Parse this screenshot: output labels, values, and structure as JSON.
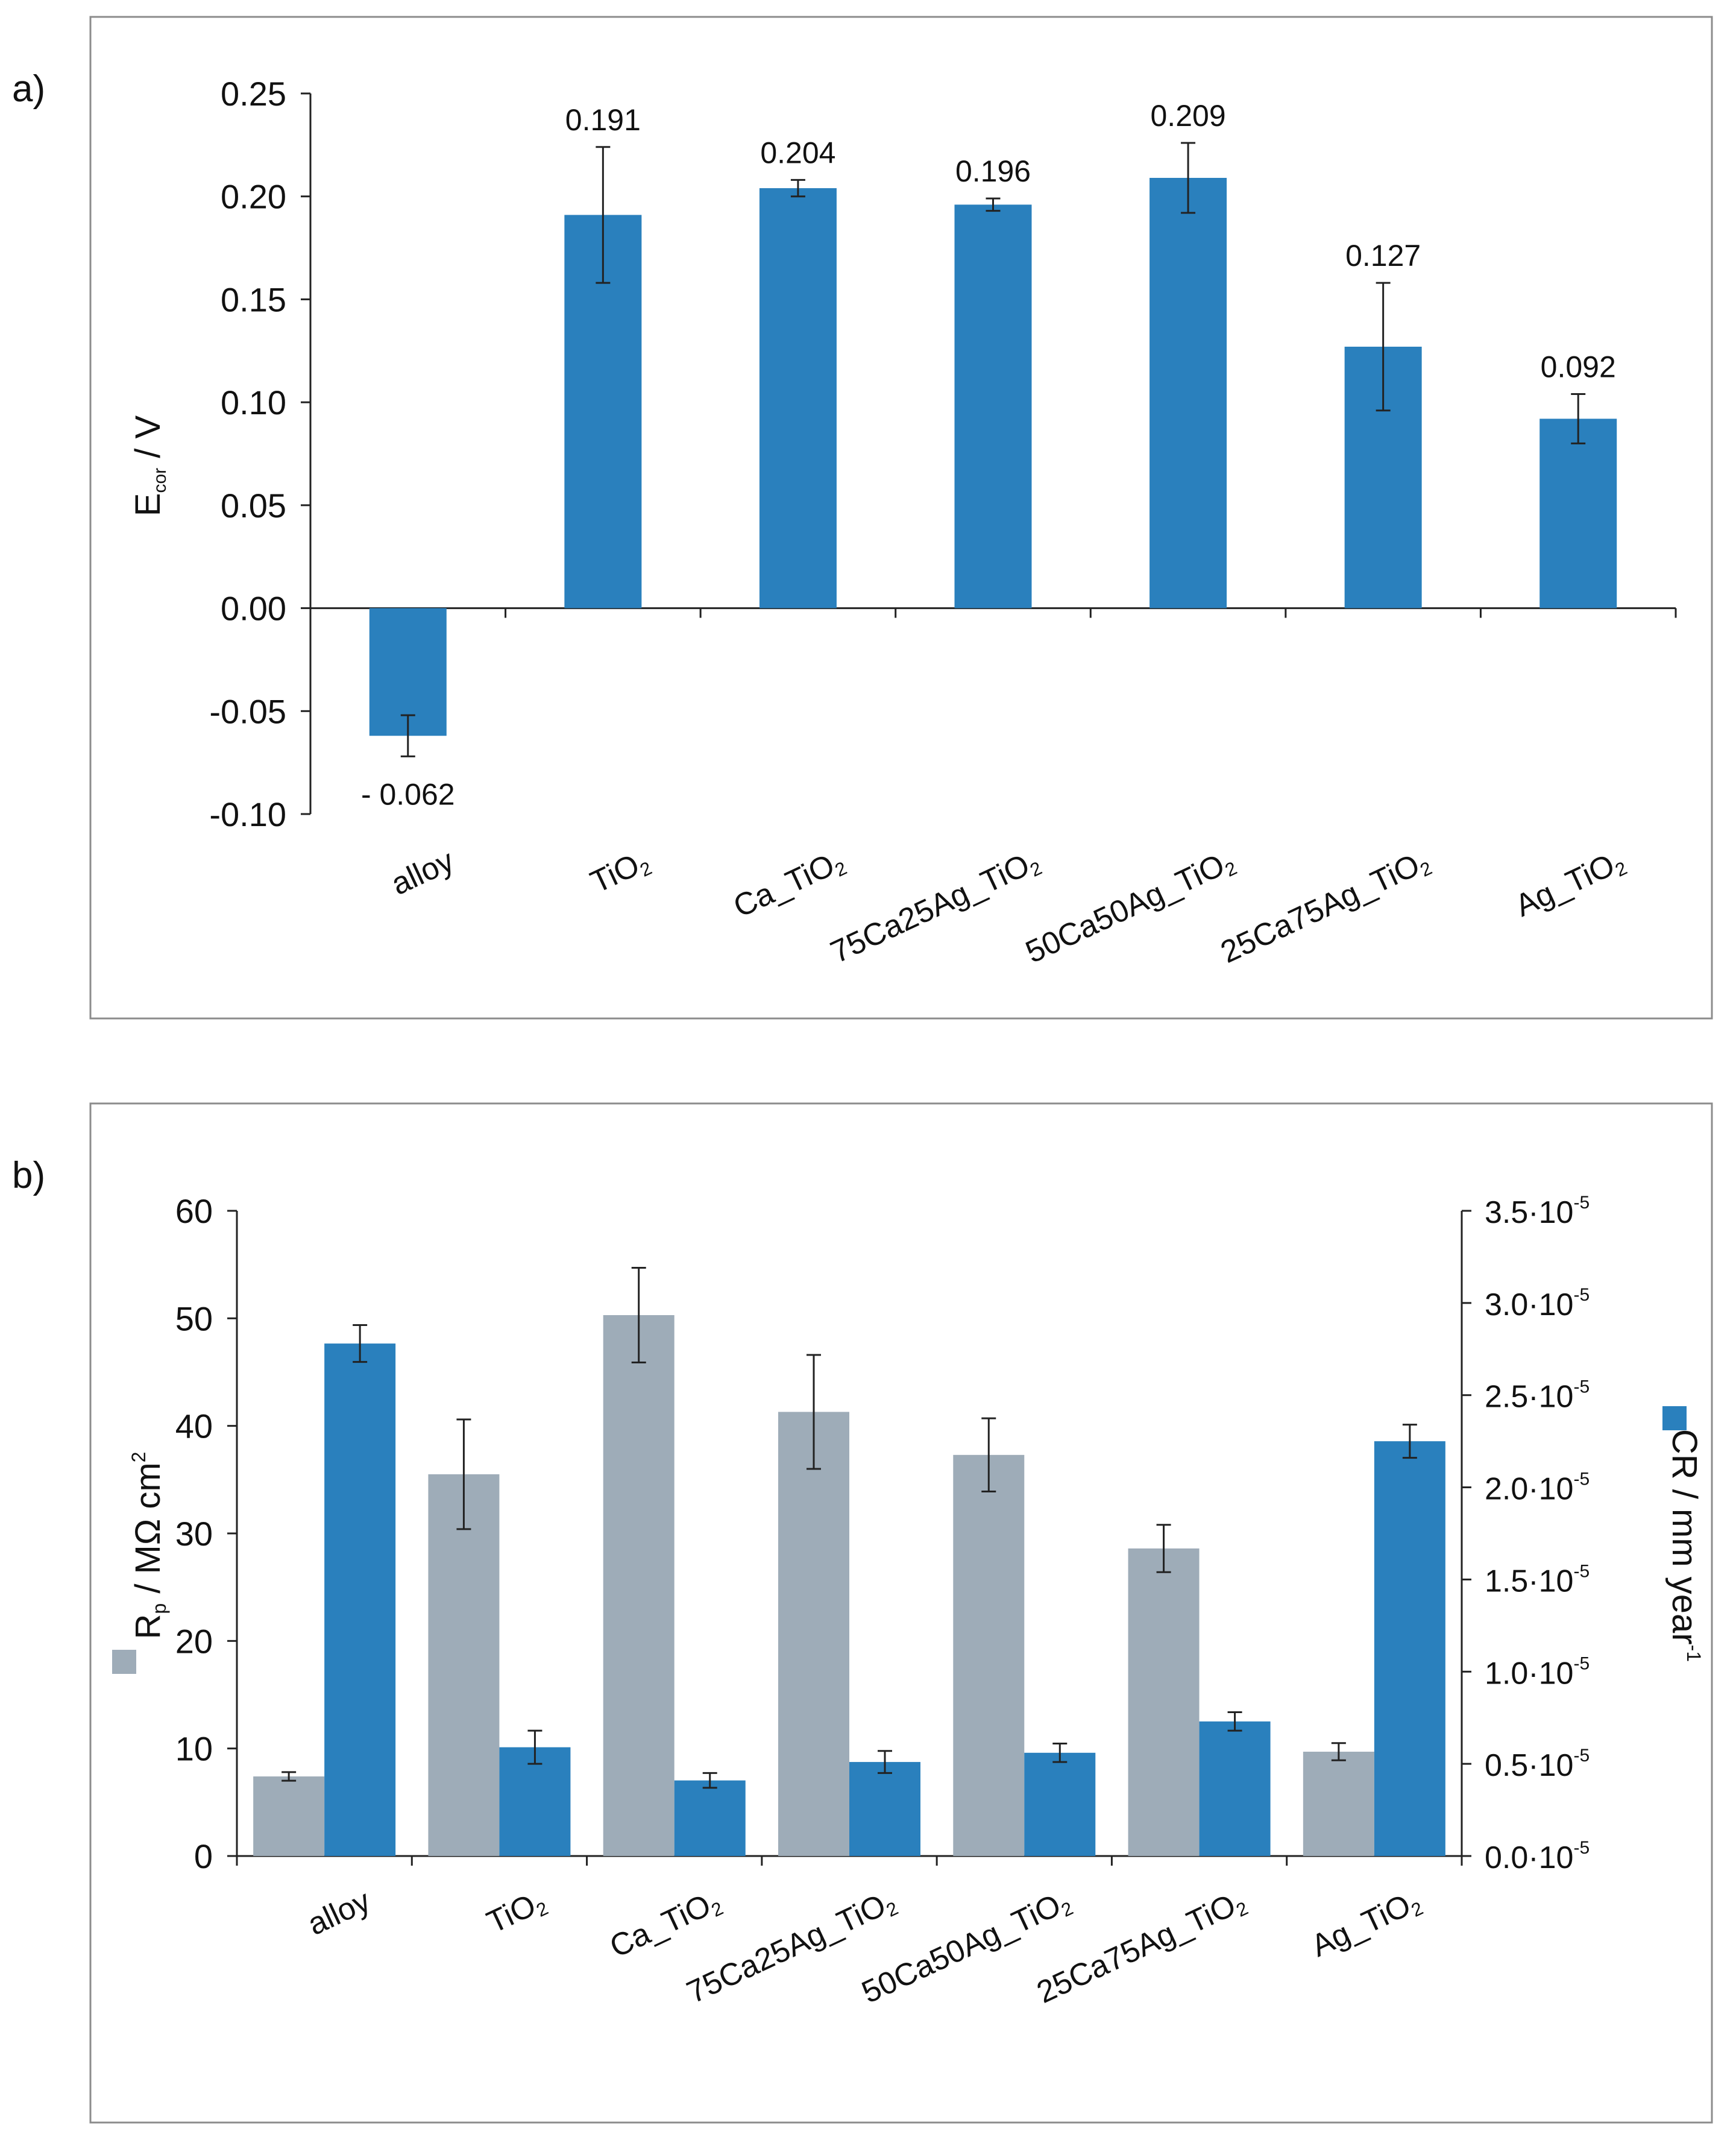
{
  "chart_data": [
    {
      "panel_label": "a)",
      "type": "bar",
      "ylabel": {
        "main": "E",
        "sub": "cor",
        "unit": " / V"
      },
      "ylim": [
        -0.1,
        0.25
      ],
      "yticks": [
        -0.1,
        -0.05,
        0.0,
        0.05,
        0.1,
        0.15,
        0.2,
        0.25
      ],
      "ytick_labels": [
        "-0.10",
        "-0.05",
        "0.00",
        "0.05",
        "0.10",
        "0.15",
        "0.20",
        "0.25"
      ],
      "categories": [
        {
          "base": "alloy",
          "sub": ""
        },
        {
          "base": "TiO",
          "sub": "2"
        },
        {
          "base": "Ca_TiO",
          "sub": "2"
        },
        {
          "base": "75Ca25Ag_TiO",
          "sub": "2"
        },
        {
          "base": "50Ca50Ag_TiO",
          "sub": "2"
        },
        {
          "base": "25Ca75Ag_TiO",
          "sub": "2"
        },
        {
          "base": "Ag_TiO",
          "sub": "2"
        }
      ],
      "values": [
        -0.062,
        0.191,
        0.204,
        0.196,
        0.209,
        0.127,
        0.092
      ],
      "value_labels": [
        "- 0.062",
        "0.191",
        "0.204",
        "0.196",
        "0.209",
        "0.127",
        "0.092"
      ],
      "errors": [
        0.01,
        0.033,
        0.004,
        0.003,
        0.017,
        0.031,
        0.012
      ],
      "color": "#2a80bd"
    },
    {
      "panel_label": "b)",
      "type": "bar",
      "categories": [
        {
          "base": "alloy",
          "sub": ""
        },
        {
          "base": "TiO",
          "sub": "2"
        },
        {
          "base": "Ca_TiO",
          "sub": "2"
        },
        {
          "base": "75Ca25Ag_TiO",
          "sub": "2"
        },
        {
          "base": "50Ca50Ag_TiO",
          "sub": "2"
        },
        {
          "base": "25Ca75Ag_TiO",
          "sub": "2"
        },
        {
          "base": "Ag_TiO",
          "sub": "2"
        }
      ],
      "left_axis": {
        "label": {
          "main": "R",
          "sub": "p",
          "unit": " / MΩ cm",
          "sup": "2"
        },
        "ylim": [
          0,
          60
        ],
        "yticks": [
          0,
          10,
          20,
          30,
          40,
          50,
          60
        ],
        "ytick_labels": [
          "0",
          "10",
          "20",
          "30",
          "40",
          "50",
          "60"
        ]
      },
      "right_axis": {
        "label": {
          "main": "CR / mm year",
          "sup": "-1"
        },
        "ylim": [
          0.0,
          3.5
        ],
        "multiplier_text": "·10",
        "multiplier_exp": "-5",
        "yticks": [
          0.0,
          0.5,
          1.0,
          1.5,
          2.0,
          2.5,
          3.0,
          3.5
        ],
        "ytick_labels": [
          "0.0",
          "0.5",
          "1.0",
          "1.5",
          "2.0",
          "2.5",
          "3.0",
          "3.5"
        ]
      },
      "series": [
        {
          "name": "Rp",
          "axis": "left",
          "color": "#9eacb8",
          "values": [
            7.4,
            35.5,
            50.3,
            41.3,
            37.3,
            28.6,
            9.7
          ],
          "errors": [
            0.4,
            5.1,
            4.4,
            5.3,
            3.4,
            2.2,
            0.8
          ]
        },
        {
          "name": "CR",
          "axis": "right",
          "color": "#2a80bd",
          "values": [
            2.78,
            0.59,
            0.41,
            0.51,
            0.56,
            0.73,
            2.25
          ],
          "errors": [
            0.1,
            0.09,
            0.04,
            0.06,
            0.05,
            0.05,
            0.09
          ]
        }
      ]
    }
  ]
}
